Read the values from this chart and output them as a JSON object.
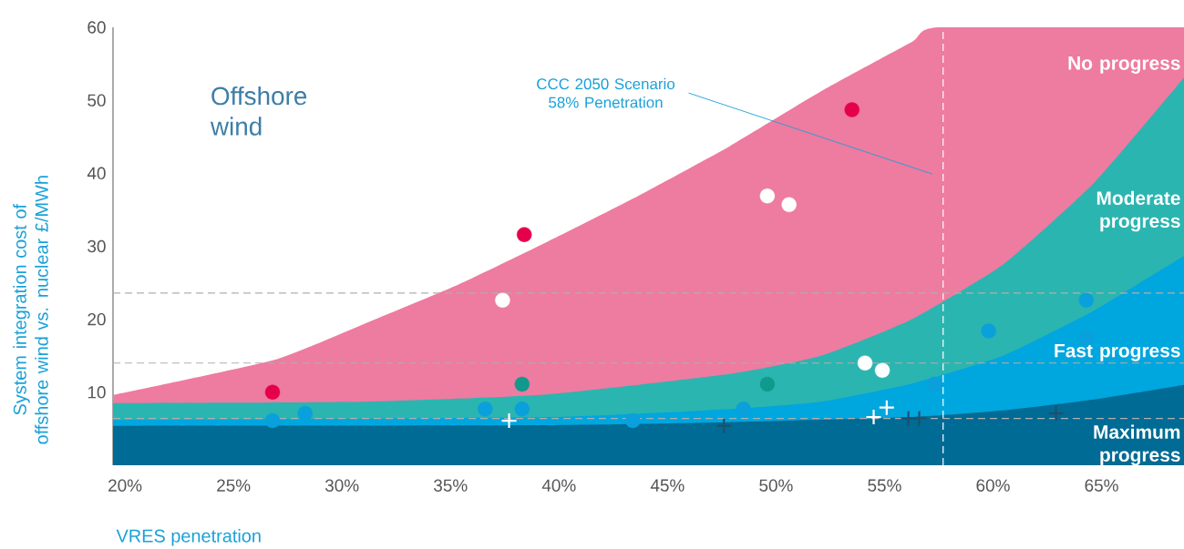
{
  "chart_data": {
    "type": "scatter",
    "title": "Offshore wind",
    "xlabel": "VRES penetration",
    "ylabel": "System integration cost of offshore wind vs. nuclear £/MWh",
    "xlim": [
      19.45,
      68.8
    ],
    "ylim": [
      0,
      60
    ],
    "xticks": [
      {
        "value": 20,
        "label": "20%"
      },
      {
        "value": 25,
        "label": "25%"
      },
      {
        "value": 30,
        "label": "30%"
      },
      {
        "value": 35,
        "label": "35%"
      },
      {
        "value": 40,
        "label": "40%"
      },
      {
        "value": 45,
        "label": "45%"
      },
      {
        "value": 50,
        "label": "50%"
      },
      {
        "value": 55,
        "label": "55%"
      },
      {
        "value": 60,
        "label": "60%"
      },
      {
        "value": 65,
        "label": "65%"
      }
    ],
    "yticks": [
      10,
      20,
      30,
      40,
      50,
      60
    ],
    "series": [
      {
        "type": "area",
        "name": "No progress",
        "color": "#ee7ba0",
        "x": [
          19.45,
          26.85,
          31.05,
          35.25,
          39.45,
          43.65,
          47.86,
          52.06,
          56.26,
          57.5,
          68.8
        ],
        "values": [
          9.6,
          14.4,
          19.4,
          24.6,
          30.6,
          36.9,
          43.7,
          51.2,
          58,
          60,
          60
        ]
      },
      {
        "type": "area",
        "name": "Moderate progress",
        "color": "#2bb5b0",
        "x": [
          19.45,
          31.05,
          39.45,
          47.86,
          52.06,
          56.26,
          60.46,
          64.66,
          68.8
        ],
        "values": [
          8.5,
          8.7,
          9.7,
          12.5,
          15,
          20,
          27.5,
          38.7,
          53.1
        ]
      },
      {
        "type": "area",
        "name": "Fast progress",
        "color": "#00a6de",
        "x": [
          19.45,
          39.45,
          47.86,
          52.06,
          56.26,
          60.46,
          64.66,
          68.8
        ],
        "values": [
          6.2,
          6.6,
          7.7,
          8.7,
          11.2,
          15,
          21.2,
          28.7
        ]
      },
      {
        "type": "area",
        "name": "Maximum progress",
        "color": "#006b94",
        "x": [
          19.45,
          39.45,
          47.86,
          56.26,
          60.46,
          64.66,
          68.8
        ],
        "values": [
          5.4,
          5.5,
          5.9,
          6.6,
          7.5,
          9,
          11
        ]
      },
      {
        "marker": "circle",
        "color": "#e5004b",
        "x": [
          26.8,
          38.4,
          53.5
        ],
        "values": [
          10,
          31.6,
          48.7
        ]
      },
      {
        "marker": "circle",
        "color": "#ffffff",
        "x": [
          37.4,
          49.6,
          50.6,
          54.1,
          54.9
        ],
        "values": [
          22.6,
          36.9,
          35.7,
          14,
          13
        ]
      },
      {
        "marker": "circle",
        "color": "#11998e",
        "x": [
          38.3,
          49.6
        ],
        "values": [
          11.1,
          11.1
        ]
      },
      {
        "marker": "circle",
        "color": "#0aa0dc",
        "x": [
          26.8,
          28.3,
          36.6,
          38.3,
          43.4,
          48.5,
          57.3,
          59.8,
          64.3,
          64.3
        ],
        "values": [
          6.1,
          7.1,
          7.7,
          7.7,
          6.1,
          7.7,
          11.1,
          18.4,
          22.6,
          17.4
        ]
      },
      {
        "marker": "cross",
        "color": "#ffffff",
        "x": [
          37.7,
          54.5,
          55.1
        ],
        "values": [
          6.1,
          6.6,
          7.9
        ]
      },
      {
        "marker": "cross",
        "color": "#1f4f6e",
        "x": [
          47.6,
          56.1,
          56.6,
          62.9
        ],
        "values": [
          5.4,
          6.4,
          6.4,
          7.1
        ]
      }
    ],
    "ref_lines": [
      {
        "axis": "x",
        "value": 57.7,
        "color": "#ffffff",
        "line_style": "dashed"
      },
      {
        "axis": "y",
        "value": 23.6,
        "color": "#b0b0b0",
        "line_style": "dashed"
      },
      {
        "axis": "y",
        "value": 14,
        "color": "#b0b0b0",
        "line_style": "dashed"
      },
      {
        "axis": "y",
        "value": 6.4,
        "color": "#b0b0b0",
        "line_style": "dashed"
      }
    ],
    "annotations": [
      "CCC 2050 Scenario 58% Penetration"
    ]
  }
}
